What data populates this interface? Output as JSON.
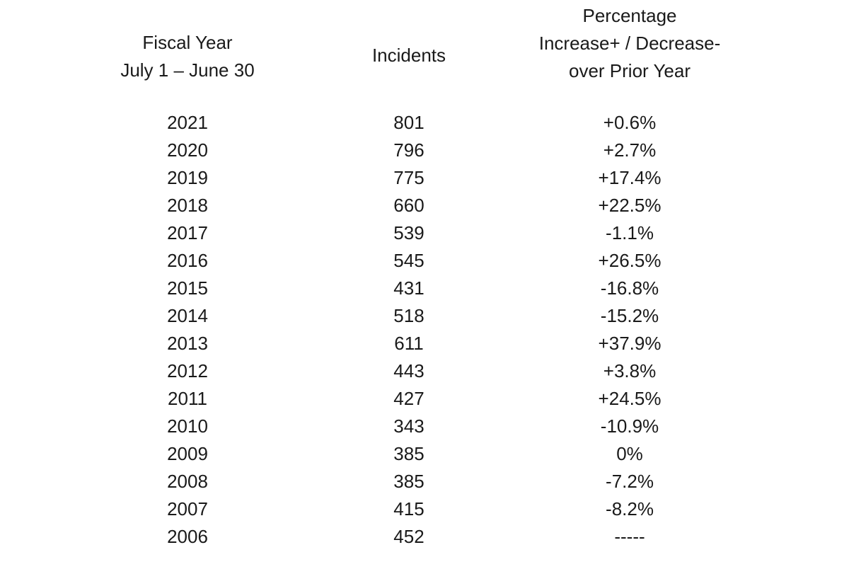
{
  "headers": {
    "fiscal_year_line1": "Fiscal Year",
    "fiscal_year_line2": "July 1 – June 30",
    "incidents": "Incidents",
    "percentage_line1": "Percentage",
    "percentage_line2": "Increase+ / Decrease-",
    "percentage_line3": "over Prior Year"
  },
  "rows": [
    {
      "year": "2021",
      "incidents": "801",
      "change": "+0.6%"
    },
    {
      "year": "2020",
      "incidents": "796",
      "change": "+2.7%"
    },
    {
      "year": "2019",
      "incidents": "775",
      "change": "+17.4%"
    },
    {
      "year": "2018",
      "incidents": "660",
      "change": "+22.5%"
    },
    {
      "year": "2017",
      "incidents": "539",
      "change": "-1.1%"
    },
    {
      "year": "2016",
      "incidents": "545",
      "change": "+26.5%"
    },
    {
      "year": "2015",
      "incidents": "431",
      "change": "-16.8%"
    },
    {
      "year": "2014",
      "incidents": "518",
      "change": "-15.2%"
    },
    {
      "year": "2013",
      "incidents": "611",
      "change": "+37.9%"
    },
    {
      "year": "2012",
      "incidents": "443",
      "change": "+3.8%"
    },
    {
      "year": "2011",
      "incidents": "427",
      "change": "+24.5%"
    },
    {
      "year": "2010",
      "incidents": "343",
      "change": "-10.9%"
    },
    {
      "year": "2009",
      "incidents": "385",
      "change": "0%"
    },
    {
      "year": "2008",
      "incidents": "385",
      "change": "-7.2%"
    },
    {
      "year": "2007",
      "incidents": "415",
      "change": "-8.2%"
    },
    {
      "year": "2006",
      "incidents": "452",
      "change": "-----"
    }
  ]
}
